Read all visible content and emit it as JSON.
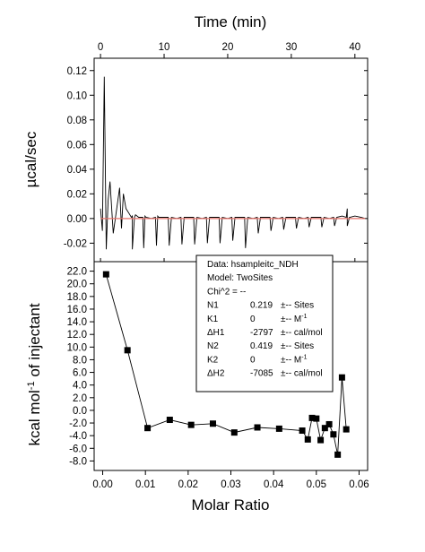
{
  "chart_data": [
    {
      "type": "line",
      "panel": "top",
      "xlabel": "Time (min)",
      "ylabel": "µcal/sec",
      "xlim": [
        -1,
        42
      ],
      "ylim": [
        -0.035,
        0.13
      ],
      "x_ticks": [
        0,
        10,
        20,
        30,
        40
      ],
      "y_ticks": [
        -0.02,
        0.0,
        0.02,
        0.04,
        0.06,
        0.08,
        0.1,
        0.12
      ],
      "y_tick_labels": [
        "-0.02",
        "0.00",
        "0.02",
        "0.04",
        "0.06",
        "0.08",
        "0.10",
        "0.12"
      ],
      "series": [
        {
          "color": "#000000",
          "x": [
            0,
            0.3,
            0.6,
            0.9,
            1.2,
            1.5,
            2.0,
            2.5,
            3.0,
            3.3,
            3.6,
            4.0,
            4.5,
            5.0,
            5.5,
            6.0,
            7.0,
            8.0,
            9.0,
            10.0,
            12.0,
            14.0,
            16.0,
            18.0,
            20.0,
            22.0,
            24.0,
            26.0,
            28.0,
            30.0,
            32.0,
            34.0,
            36.0,
            38.0,
            38.8,
            39.2,
            40.0,
            41.0,
            41.6
          ],
          "y": [
            0.008,
            -0.01,
            0.115,
            -0.025,
            0.015,
            0.03,
            -0.012,
            0.006,
            0.025,
            -0.008,
            0.02,
            0.008,
            0.004,
            0.002,
            0.003,
            0.001,
            0.002,
            0.0,
            0.002,
            0.001,
            0.0,
            0.001,
            0.0,
            0.001,
            0.0,
            0.001,
            0.0,
            0.001,
            0.0,
            0.001,
            0.0,
            0.001,
            0.0,
            0.002,
            0.008,
            0.001,
            0.002,
            0.001,
            0.0
          ]
        },
        {
          "color": "#e8736b",
          "x": [
            0,
            41.6
          ],
          "y": [
            0.0,
            0.0
          ]
        }
      ],
      "injection_spikes": {
        "x": [
          5.0,
          6.8,
          8.8,
          10.8,
          12.8,
          14.8,
          16.8,
          18.8,
          20.8,
          22.8,
          24.8,
          26.8,
          28.8,
          30.8,
          32.8,
          34.8,
          36.8,
          38.8
        ],
        "y": [
          -0.025,
          -0.024,
          -0.022,
          -0.022,
          -0.021,
          -0.021,
          -0.02,
          -0.02,
          -0.018,
          -0.024,
          -0.012,
          -0.01,
          -0.009,
          -0.008,
          -0.007,
          -0.007,
          -0.006,
          -0.006
        ]
      }
    },
    {
      "type": "scatter",
      "panel": "bottom",
      "xlabel": "Molar Ratio",
      "ylabel_parts": [
        "kcal mol",
        "-1",
        " of injectant"
      ],
      "xlim": [
        -0.002,
        0.062
      ],
      "ylim": [
        -9.5,
        23.5
      ],
      "x_ticks": [
        0.0,
        0.01,
        0.02,
        0.03,
        0.04,
        0.05,
        0.06
      ],
      "x_tick_labels": [
        "0.00",
        "0.01",
        "0.02",
        "0.03",
        "0.04",
        "0.05",
        "0.06"
      ],
      "y_ticks": [
        -8,
        -6,
        -4,
        -2,
        0,
        2,
        4,
        6,
        8,
        10,
        12,
        14,
        16,
        18,
        20,
        22
      ],
      "y_tick_labels": [
        "-8.0",
        "-6.0",
        "-4.0",
        "-2.0",
        "0.0",
        "2.0",
        "4.0",
        "6.0",
        "8.0",
        "10.0",
        "12.0",
        "14.0",
        "16.0",
        "18.0",
        "20.0",
        "22.0"
      ],
      "points": {
        "x": [
          0.0008,
          0.0058,
          0.0105,
          0.0157,
          0.0207,
          0.0258,
          0.0308,
          0.0362,
          0.0413,
          0.0467,
          0.048,
          0.049,
          0.05,
          0.051,
          0.052,
          0.053,
          0.054,
          0.055,
          0.056,
          0.057
        ],
        "y": [
          21.5,
          9.5,
          -2.8,
          -1.5,
          -2.3,
          -2.1,
          -3.5,
          -2.7,
          -2.9,
          -3.2,
          -4.6,
          -1.2,
          -1.3,
          -4.7,
          -2.8,
          -2.2,
          -3.8,
          -7.0,
          5.2,
          -3.0
        ]
      },
      "fit_line": {
        "x": [
          0.0008,
          0.0058,
          0.0105,
          0.0157,
          0.0207,
          0.0258,
          0.0308,
          0.0362,
          0.0413,
          0.0467,
          0.048,
          0.049,
          0.05,
          0.051,
          0.052,
          0.053,
          0.054,
          0.055,
          0.056,
          0.057
        ],
        "y": [
          21.5,
          9.5,
          -2.8,
          -1.5,
          -2.3,
          -2.1,
          -3.5,
          -2.7,
          -2.9,
          -3.2,
          -4.6,
          -1.2,
          -1.3,
          -4.7,
          -2.8,
          -2.2,
          -3.8,
          -7.0,
          5.2,
          -3.0
        ]
      },
      "annotation": {
        "lines": [
          {
            "cols": [
              "Data: hsampleitc_NDH"
            ]
          },
          {
            "cols": [
              "Model: TwoSites"
            ]
          },
          {
            "cols": [
              "Chi^2 = --"
            ]
          },
          {
            "cols": [
              "N1",
              "0.219",
              "±-- Sites"
            ]
          },
          {
            "cols": [
              "K1",
              "0",
              "±-- M",
              "-1"
            ]
          },
          {
            "cols": [
              "ΔH1",
              "-2797",
              "±-- cal/mol"
            ]
          },
          {
            "cols": [
              "N2",
              "0.419",
              "±-- Sites"
            ]
          },
          {
            "cols": [
              "K2",
              "0",
              "±-- M",
              "-1"
            ]
          },
          {
            "cols": [
              "ΔH2",
              "-7085",
              "±-- cal/mol"
            ]
          }
        ]
      }
    }
  ]
}
